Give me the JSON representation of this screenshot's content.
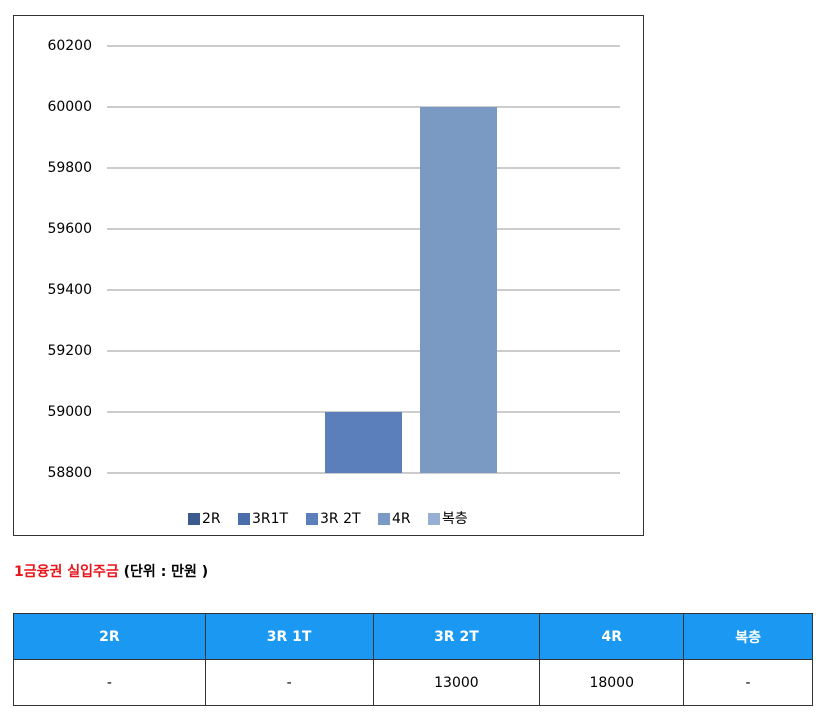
{
  "chart_data": {
    "type": "bar",
    "categories": [
      "2R",
      "3R1T",
      "3R 2T",
      "4R",
      "복층"
    ],
    "values": [
      null,
      null,
      59000,
      60000,
      null
    ],
    "colors": [
      "#3b5b8e",
      "#4a6ea9",
      "#5b7fba",
      "#7a9ac4",
      "#98afd4"
    ],
    "ylim": [
      58800,
      60200
    ],
    "yticks": [
      58800,
      59000,
      59200,
      59400,
      59600,
      59800,
      60000,
      60200
    ],
    "grid": true,
    "legend": "bottom"
  },
  "caption": {
    "title": "1금융권 실입주금",
    "unit": "(단위 : 만원 )"
  },
  "table": {
    "header": [
      "2R",
      "3R 1T",
      "3R 2T",
      "4R",
      "복층"
    ],
    "rows": [
      [
        "-",
        "-",
        "13000",
        "18000",
        "-"
      ]
    ]
  }
}
